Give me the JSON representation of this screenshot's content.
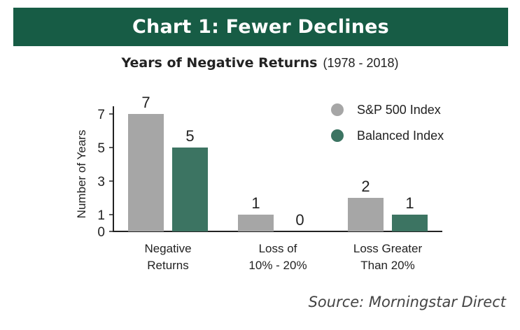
{
  "banner": {
    "title": "Chart 1: Fewer Declines",
    "color": "#175c45"
  },
  "subtitle": {
    "main": "Years of Negative Returns",
    "range": "(1978 - 2018)"
  },
  "source": "Source: Morningstar Direct",
  "chart_data": {
    "type": "bar",
    "categories": [
      [
        "Negative",
        "Returns"
      ],
      [
        "Loss of",
        "10% - 20%"
      ],
      [
        "Loss Greater",
        "Than 20%"
      ]
    ],
    "series": [
      {
        "name": "S&P 500 Index",
        "values": [
          7,
          1,
          2
        ],
        "color": "#a6a6a6"
      },
      {
        "name": "Balanced Index",
        "values": [
          5,
          0,
          1
        ],
        "color": "#3c7462"
      }
    ],
    "ylabel": "Number of Years",
    "yticks": [
      0,
      1,
      3,
      5,
      7
    ],
    "ylim": [
      0,
      7
    ],
    "legend": "top-right",
    "grid": false
  }
}
